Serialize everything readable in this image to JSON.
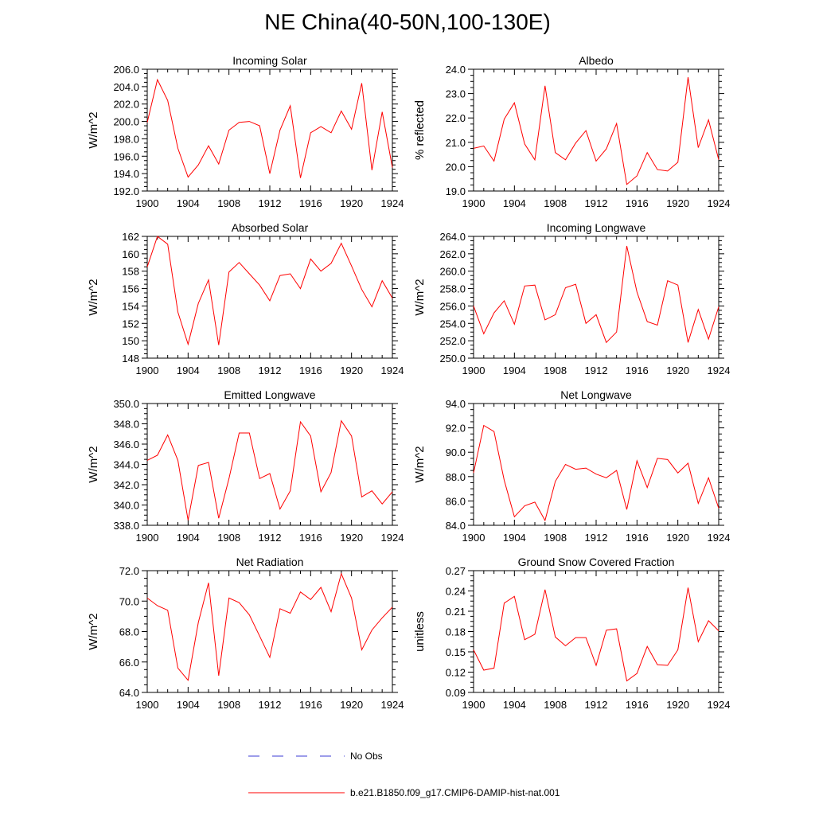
{
  "title": "NE China(40-50N,100-130E)",
  "colors": {
    "model_line": "#ff0000",
    "obs_line": "#3b3bd6",
    "axis": "#000000"
  },
  "legend": {
    "obs_label": "No Obs",
    "model_label": "b.e21.B1850.f09_g17.CMIP6-DAMIP-hist-nat.001"
  },
  "chart_data": [
    {
      "type": "line",
      "title": "Incoming Solar",
      "ylabel": "W/m^2",
      "xlim": [
        1900,
        1924
      ],
      "ylim": [
        192,
        206
      ],
      "x_ticks": [
        1900,
        1904,
        1908,
        1912,
        1916,
        1920,
        1924
      ],
      "y_ticks": [
        "192.0",
        "194.0",
        "196.0",
        "198.0",
        "200.0",
        "202.0",
        "204.0",
        "206.0"
      ],
      "series": [
        {
          "x": [
            1900,
            1901,
            1902,
            1903,
            1904,
            1905,
            1906,
            1907,
            1908,
            1909,
            1910,
            1911,
            1912,
            1913,
            1914,
            1915,
            1916,
            1917,
            1918,
            1919,
            1920,
            1921,
            1922,
            1923,
            1924
          ],
          "values": [
            199.9,
            204.8,
            202.4,
            196.9,
            193.6,
            195.0,
            197.2,
            195.1,
            199.0,
            199.9,
            200.0,
            199.5,
            194.0,
            199.0,
            201.8,
            193.5,
            198.7,
            199.4,
            198.7,
            201.2,
            199.1,
            204.4,
            194.4,
            201.1,
            194.7
          ]
        }
      ]
    },
    {
      "type": "line",
      "title": "Albedo",
      "ylabel": "% reflected",
      "xlim": [
        1900,
        1924
      ],
      "ylim": [
        19,
        24
      ],
      "x_ticks": [
        1900,
        1904,
        1908,
        1912,
        1916,
        1920,
        1924
      ],
      "y_ticks": [
        "19.0",
        "20.0",
        "21.0",
        "22.0",
        "23.0",
        "24.0"
      ],
      "series": [
        {
          "x": [
            1900,
            1901,
            1902,
            1903,
            1904,
            1905,
            1906,
            1907,
            1908,
            1909,
            1910,
            1911,
            1912,
            1913,
            1914,
            1915,
            1916,
            1917,
            1918,
            1919,
            1920,
            1921,
            1922,
            1923,
            1924
          ],
          "values": [
            20.75,
            20.85,
            20.23,
            21.95,
            22.62,
            20.93,
            20.28,
            23.32,
            20.58,
            20.28,
            20.97,
            21.48,
            20.23,
            20.73,
            21.77,
            19.27,
            19.62,
            20.58,
            19.88,
            19.82,
            20.18,
            23.67,
            20.78,
            21.92,
            20.28
          ]
        }
      ]
    },
    {
      "type": "line",
      "title": "Absorbed Solar",
      "ylabel": "W/m^2",
      "xlim": [
        1900,
        1924
      ],
      "ylim": [
        148,
        162
      ],
      "x_ticks": [
        1900,
        1904,
        1908,
        1912,
        1916,
        1920,
        1924
      ],
      "y_ticks": [
        "148",
        "150",
        "152",
        "154",
        "156",
        "158",
        "160",
        "162"
      ],
      "series": [
        {
          "x": [
            1900,
            1901,
            1902,
            1903,
            1904,
            1905,
            1906,
            1907,
            1908,
            1909,
            1910,
            1911,
            1912,
            1913,
            1914,
            1915,
            1916,
            1917,
            1918,
            1919,
            1920,
            1921,
            1922,
            1923,
            1924
          ],
          "values": [
            158.5,
            162.0,
            161.1,
            153.3,
            149.6,
            154.3,
            157.0,
            149.5,
            157.9,
            159.0,
            157.7,
            156.4,
            154.6,
            157.5,
            157.7,
            156.0,
            159.4,
            158.0,
            158.9,
            161.2,
            158.6,
            155.9,
            153.9,
            156.9,
            154.9
          ]
        }
      ]
    },
    {
      "type": "line",
      "title": "Incoming Longwave",
      "ylabel": "W/m^2",
      "xlim": [
        1900,
        1924
      ],
      "ylim": [
        250,
        264
      ],
      "x_ticks": [
        1900,
        1904,
        1908,
        1912,
        1916,
        1920,
        1924
      ],
      "y_ticks": [
        "250.0",
        "252.0",
        "254.0",
        "256.0",
        "258.0",
        "260.0",
        "262.0",
        "264.0"
      ],
      "series": [
        {
          "x": [
            1900,
            1901,
            1902,
            1903,
            1904,
            1905,
            1906,
            1907,
            1908,
            1909,
            1910,
            1911,
            1912,
            1913,
            1914,
            1915,
            1916,
            1917,
            1918,
            1919,
            1920,
            1921,
            1922,
            1923,
            1924
          ],
          "values": [
            256.0,
            252.8,
            255.2,
            256.6,
            253.9,
            258.3,
            258.4,
            254.4,
            255.0,
            258.1,
            258.5,
            254.0,
            255.0,
            251.8,
            253.0,
            262.9,
            257.6,
            254.2,
            253.8,
            258.9,
            258.4,
            251.8,
            255.6,
            252.2,
            255.9
          ]
        }
      ]
    },
    {
      "type": "line",
      "title": "Emitted Longwave",
      "ylabel": "W/m^2",
      "xlim": [
        1900,
        1924
      ],
      "ylim": [
        338,
        350
      ],
      "x_ticks": [
        1900,
        1904,
        1908,
        1912,
        1916,
        1920,
        1924
      ],
      "y_ticks": [
        "338.0",
        "340.0",
        "342.0",
        "344.0",
        "346.0",
        "348.0",
        "350.0"
      ],
      "series": [
        {
          "x": [
            1900,
            1901,
            1902,
            1903,
            1904,
            1905,
            1906,
            1907,
            1908,
            1909,
            1910,
            1911,
            1912,
            1913,
            1914,
            1915,
            1916,
            1917,
            1918,
            1919,
            1920,
            1921,
            1922,
            1923,
            1924
          ],
          "values": [
            344.4,
            344.9,
            346.9,
            344.4,
            338.5,
            343.9,
            344.2,
            338.7,
            342.6,
            347.1,
            347.1,
            342.6,
            343.1,
            339.6,
            341.4,
            348.2,
            346.8,
            341.3,
            343.2,
            348.3,
            346.8,
            340.8,
            341.4,
            340.1,
            341.3
          ]
        }
      ]
    },
    {
      "type": "line",
      "title": "Net Longwave",
      "ylabel": "W/m^2",
      "xlim": [
        1900,
        1924
      ],
      "ylim": [
        84,
        94
      ],
      "x_ticks": [
        1900,
        1904,
        1908,
        1912,
        1916,
        1920,
        1924
      ],
      "y_ticks": [
        "84.0",
        "86.0",
        "88.0",
        "90.0",
        "92.0",
        "94.0"
      ],
      "series": [
        {
          "x": [
            1900,
            1901,
            1902,
            1903,
            1904,
            1905,
            1906,
            1907,
            1908,
            1909,
            1910,
            1911,
            1912,
            1913,
            1914,
            1915,
            1916,
            1917,
            1918,
            1919,
            1920,
            1921,
            1922,
            1923,
            1924
          ],
          "values": [
            88.3,
            92.2,
            91.7,
            87.7,
            84.7,
            85.6,
            85.9,
            84.4,
            87.6,
            89.0,
            88.6,
            88.7,
            88.2,
            87.9,
            88.5,
            85.3,
            89.3,
            87.1,
            89.5,
            89.4,
            88.3,
            89.1,
            85.8,
            87.9,
            85.4
          ]
        }
      ]
    },
    {
      "type": "line",
      "title": "Net Radiation",
      "ylabel": "W/m^2",
      "xlim": [
        1900,
        1924
      ],
      "ylim": [
        64,
        72
      ],
      "x_ticks": [
        1900,
        1904,
        1908,
        1912,
        1916,
        1920,
        1924
      ],
      "y_ticks": [
        "64.0",
        "66.0",
        "68.0",
        "70.0",
        "72.0"
      ],
      "series": [
        {
          "x": [
            1900,
            1901,
            1902,
            1903,
            1904,
            1905,
            1906,
            1907,
            1908,
            1909,
            1910,
            1911,
            1912,
            1913,
            1914,
            1915,
            1916,
            1917,
            1918,
            1919,
            1920,
            1921,
            1922,
            1923,
            1924
          ],
          "values": [
            70.2,
            69.7,
            69.4,
            65.6,
            64.8,
            68.6,
            71.2,
            65.1,
            70.2,
            69.9,
            69.1,
            67.7,
            66.3,
            69.5,
            69.2,
            70.6,
            70.1,
            70.9,
            69.3,
            71.8,
            70.2,
            66.8,
            68.1,
            68.9,
            69.6
          ]
        }
      ]
    },
    {
      "type": "line",
      "title": "Ground Snow Covered Fraction",
      "ylabel": "unitless",
      "xlim": [
        1900,
        1924
      ],
      "ylim": [
        0.09,
        0.27
      ],
      "x_ticks": [
        1900,
        1904,
        1908,
        1912,
        1916,
        1920,
        1924
      ],
      "y_ticks": [
        "0.09",
        "0.12",
        "0.15",
        "0.18",
        "0.21",
        "0.24",
        "0.27"
      ],
      "series": [
        {
          "x": [
            1900,
            1901,
            1902,
            1903,
            1904,
            1905,
            1906,
            1907,
            1908,
            1909,
            1910,
            1911,
            1912,
            1913,
            1914,
            1915,
            1916,
            1917,
            1918,
            1919,
            1920,
            1921,
            1922,
            1923,
            1924
          ],
          "values": [
            0.153,
            0.123,
            0.126,
            0.222,
            0.232,
            0.168,
            0.176,
            0.242,
            0.172,
            0.159,
            0.171,
            0.171,
            0.13,
            0.182,
            0.184,
            0.107,
            0.118,
            0.158,
            0.131,
            0.13,
            0.153,
            0.245,
            0.165,
            0.196,
            0.181
          ]
        }
      ]
    }
  ]
}
